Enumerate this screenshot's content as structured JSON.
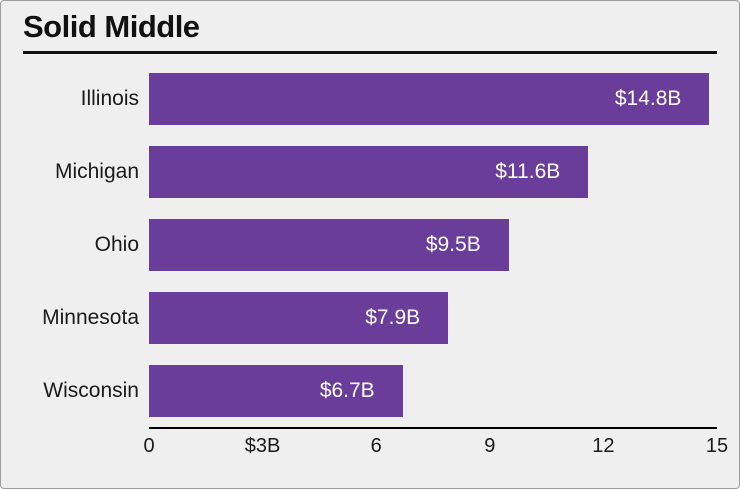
{
  "title": "Solid Middle",
  "chart_data": {
    "type": "bar",
    "orientation": "horizontal",
    "title": "Solid Middle",
    "categories": [
      "Illinois",
      "Michigan",
      "Ohio",
      "Minnesota",
      "Wisconsin"
    ],
    "values": [
      14.8,
      11.6,
      9.5,
      7.9,
      6.7
    ],
    "value_labels": [
      "$14.8B",
      "$11.6B",
      "$9.5B",
      "$7.9B",
      "$6.7B"
    ],
    "x_ticks": [
      "0",
      "$3B",
      "6",
      "9",
      "12",
      "15"
    ],
    "xlim": [
      0,
      15
    ],
    "grid": false,
    "legend": false,
    "bar_color": "#6a3d9a",
    "background_color": "#efefef",
    "value_label_color": "#ffffff"
  }
}
